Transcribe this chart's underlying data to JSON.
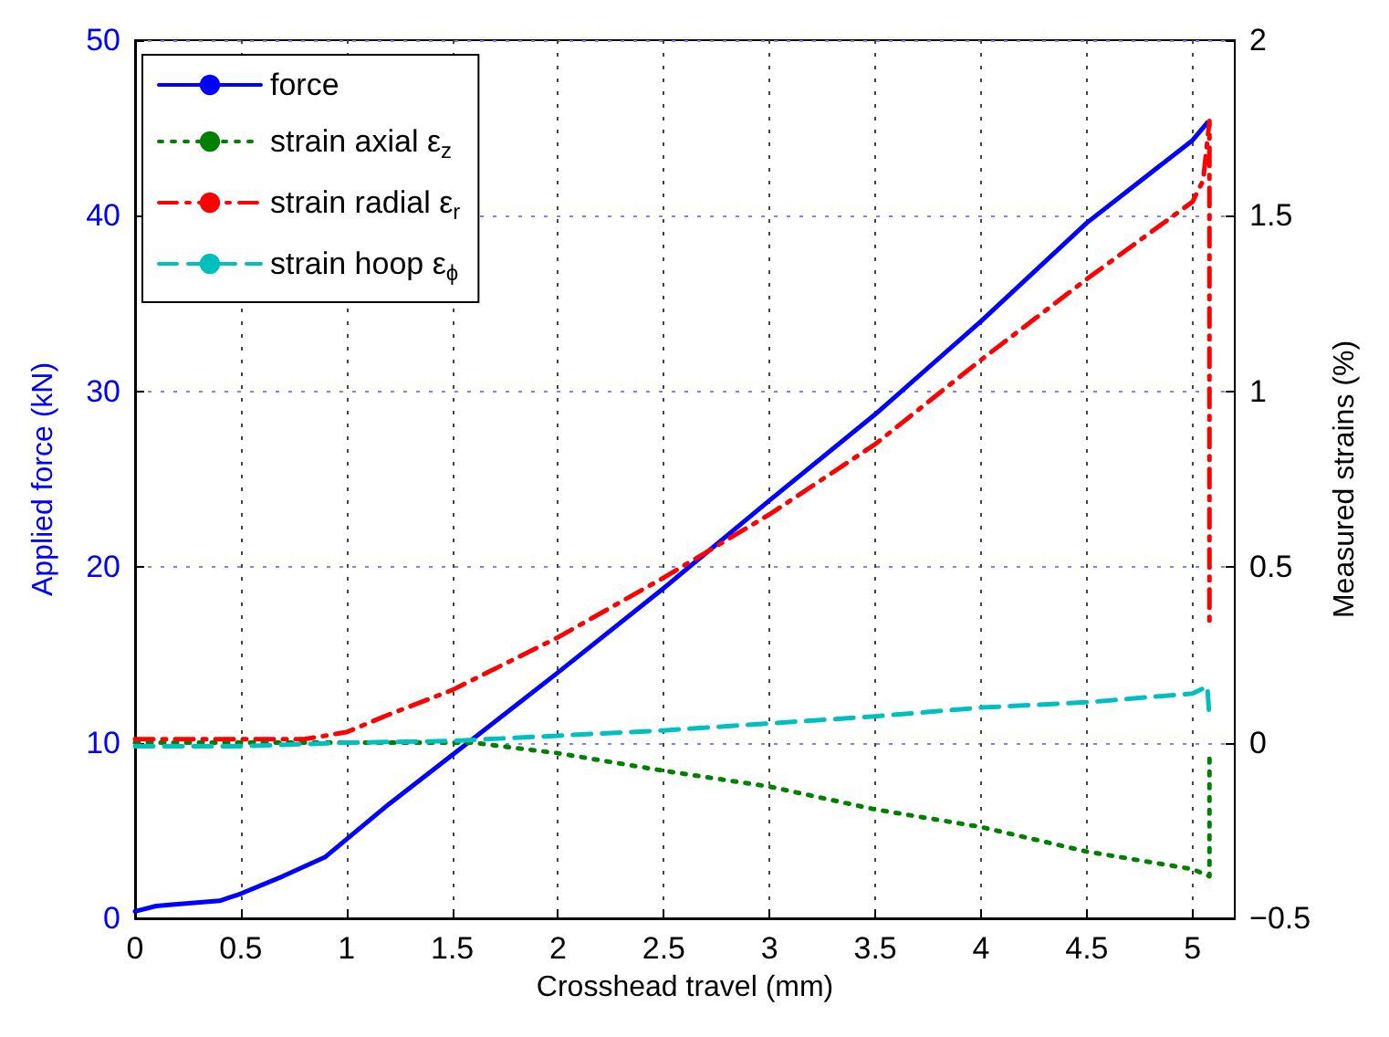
{
  "chart_data": {
    "type": "line",
    "xlabel": "Crosshead travel (mm)",
    "ylabel": "Applied force (kN)",
    "y2label": "Measured strains (%)",
    "xlim": [
      0,
      5.2
    ],
    "xticks": [
      0,
      0.5,
      1,
      1.5,
      2,
      2.5,
      3,
      3.5,
      4,
      4.5,
      5
    ],
    "ylim": [
      0,
      50
    ],
    "yticks": [
      0,
      10,
      20,
      30,
      40,
      50
    ],
    "y2lim": [
      -0.5,
      2
    ],
    "y2ticks": [
      -0.5,
      0,
      0.5,
      1,
      1.5,
      2
    ],
    "grid": true,
    "legend": "top left",
    "marker": "none",
    "series": [
      {
        "name": "force",
        "color": "#0000ff",
        "line_style": "solid",
        "axis": "y",
        "x": [
          0,
          0.1,
          0.2,
          0.4,
          0.5,
          0.7,
          0.9,
          1.0,
          1.2,
          1.5,
          2.0,
          2.5,
          3.0,
          3.5,
          4.0,
          4.5,
          5.0,
          5.07
        ],
        "values": [
          0.4,
          0.7,
          0.8,
          1.0,
          1.4,
          2.4,
          3.5,
          4.5,
          6.5,
          9.3,
          14,
          18.8,
          23.8,
          28.7,
          34,
          39.6,
          44.3,
          45.3
        ]
      },
      {
        "name": "strain axial ε$_{z}$",
        "color": "#008000",
        "line_style": "dotted",
        "axis": "y2",
        "x": [
          0,
          0.5,
          1.0,
          1.5,
          1.6,
          2.0,
          2.5,
          3.0,
          3.5,
          4.0,
          4.5,
          5.0,
          5.08,
          5.08
        ],
        "values": [
          0,
          0,
          0,
          0,
          0,
          -0.03,
          -0.08,
          -0.125,
          -0.19,
          -0.24,
          -0.31,
          -0.36,
          -0.38,
          -0.04
        ]
      },
      {
        "name": "strain radial ε$_{r}$",
        "color": "#ff0000",
        "line_style": "dashdot",
        "axis": "y2",
        "x": [
          0,
          0.5,
          0.8,
          1.0,
          1.2,
          1.5,
          2.0,
          2.5,
          3.0,
          3.5,
          4.0,
          4.5,
          5.0,
          5.05,
          5.08,
          5.08
        ],
        "values": [
          0.01,
          0.01,
          0.01,
          0.03,
          0.08,
          0.15,
          0.3,
          0.47,
          0.65,
          0.85,
          1.09,
          1.32,
          1.54,
          1.6,
          1.77,
          0.33
        ]
      },
      {
        "name": "strain hoop ε$_{ϕ}$",
        "color": "#00bfbf",
        "line_style": "dashed",
        "axis": "y2",
        "x": [
          0,
          0.5,
          1.0,
          1.5,
          2.0,
          2.5,
          3.0,
          3.5,
          4.0,
          4.5,
          5.0,
          5.07,
          5.08
        ],
        "values": [
          -0.01,
          -0.01,
          0,
          0.005,
          0.02,
          0.035,
          0.055,
          0.075,
          0.1,
          0.115,
          0.14,
          0.16,
          0.07
        ]
      }
    ]
  }
}
